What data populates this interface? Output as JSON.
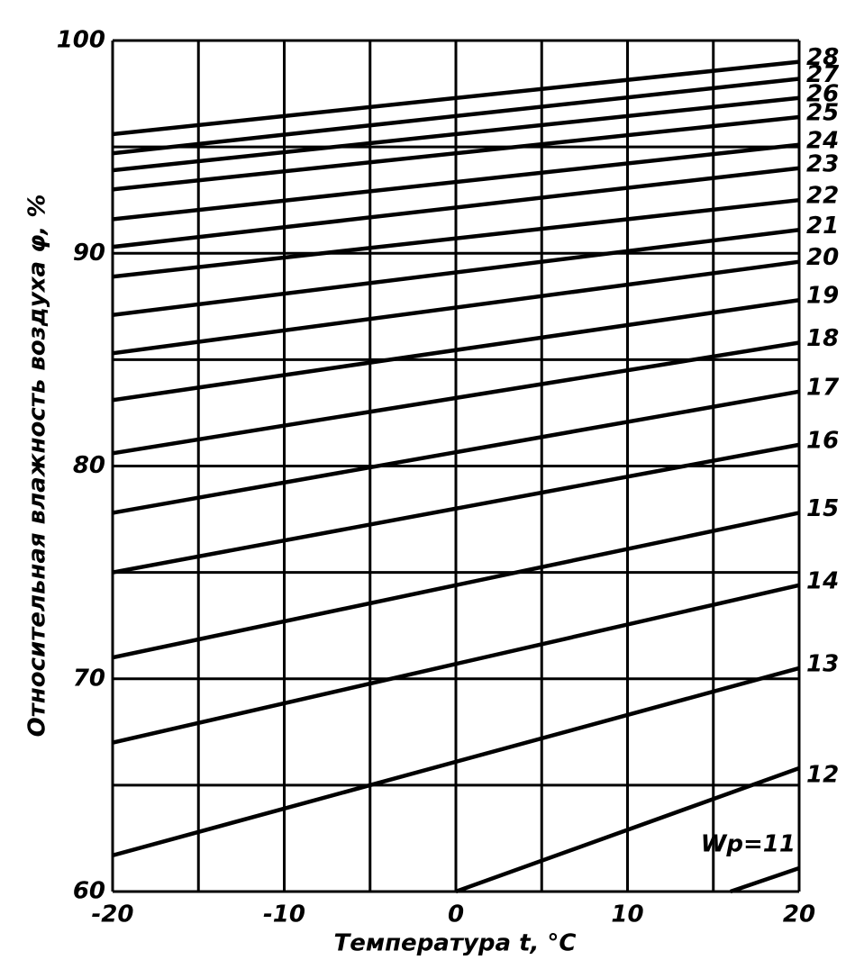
{
  "chart_data": {
    "type": "line",
    "x_label": "Температура t, °C",
    "y_label": "Относительная влажность воздуха φ, %",
    "xlim": [
      -20,
      20
    ],
    "ylim": [
      60,
      100
    ],
    "xticks": [
      -20,
      -10,
      0,
      10,
      20
    ],
    "yticks": [
      60,
      70,
      80,
      90,
      100
    ],
    "xminor": [
      -15,
      -5,
      5,
      15
    ],
    "yminor": [
      65,
      75,
      85,
      95
    ],
    "grid": true,
    "color": "#000000",
    "series": [
      {
        "name": "Wp=11",
        "x": [
          16,
          20
        ],
        "values": [
          60,
          61.1
        ]
      },
      {
        "name": "12",
        "x": [
          0,
          20
        ],
        "values": [
          60,
          65.8
        ]
      },
      {
        "name": "13",
        "x": [
          -20,
          20
        ],
        "values": [
          61.7,
          70.5
        ]
      },
      {
        "name": "14",
        "x": [
          -20,
          20
        ],
        "values": [
          67.0,
          74.4
        ]
      },
      {
        "name": "15",
        "x": [
          -20,
          20
        ],
        "values": [
          71.0,
          77.8
        ]
      },
      {
        "name": "16",
        "x": [
          -20,
          20
        ],
        "values": [
          75.0,
          81.0
        ]
      },
      {
        "name": "17",
        "x": [
          -20,
          20
        ],
        "values": [
          77.8,
          83.5
        ]
      },
      {
        "name": "18",
        "x": [
          -20,
          20
        ],
        "values": [
          80.6,
          85.8
        ]
      },
      {
        "name": "19",
        "x": [
          -20,
          20
        ],
        "values": [
          83.1,
          87.8
        ]
      },
      {
        "name": "20",
        "x": [
          -20,
          20
        ],
        "values": [
          85.3,
          89.6
        ]
      },
      {
        "name": "21",
        "x": [
          -20,
          20
        ],
        "values": [
          87.1,
          91.1
        ]
      },
      {
        "name": "22",
        "x": [
          -20,
          20
        ],
        "values": [
          88.9,
          92.5
        ]
      },
      {
        "name": "23",
        "x": [
          -20,
          20
        ],
        "values": [
          90.3,
          94.0
        ]
      },
      {
        "name": "24",
        "x": [
          -20,
          20
        ],
        "values": [
          91.6,
          95.1
        ]
      },
      {
        "name": "25",
        "x": [
          -20,
          20
        ],
        "values": [
          93.0,
          96.4
        ]
      },
      {
        "name": "26",
        "x": [
          -20,
          20
        ],
        "values": [
          93.9,
          97.3
        ]
      },
      {
        "name": "27",
        "x": [
          -20,
          20
        ],
        "values": [
          94.7,
          98.2
        ]
      },
      {
        "name": "28",
        "x": [
          -20,
          20
        ],
        "values": [
          95.6,
          99.0
        ]
      }
    ]
  }
}
